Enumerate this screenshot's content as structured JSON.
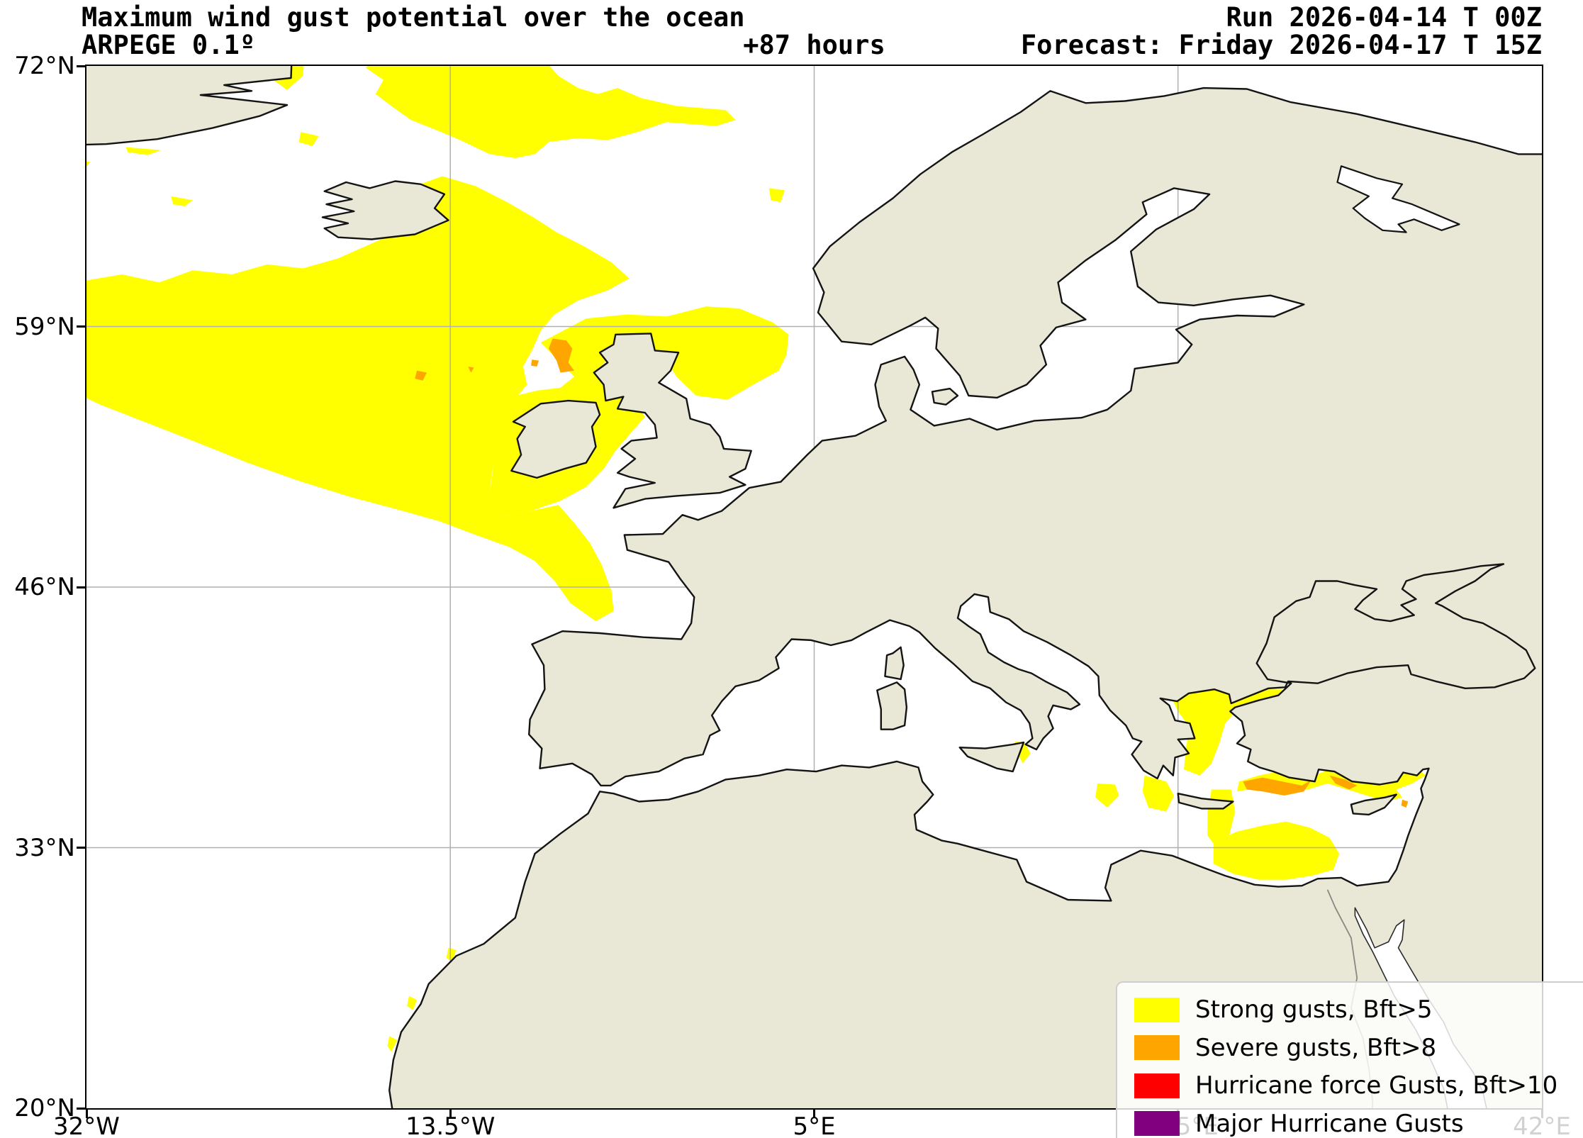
{
  "header": {
    "title": "Maximum wind gust potential over the ocean",
    "model": "ARPEGE 0.1º",
    "lead": "+87 hours",
    "run": "Run 2026-04-14 T 00Z",
    "forecast": "Forecast: Friday 2026-04-17 T 15Z"
  },
  "axes": {
    "y_ticks": [
      "72°N",
      "59°N",
      "46°N",
      "33°N",
      "20°N"
    ],
    "x_ticks": [
      "32°W",
      "13.5°W",
      "5°E",
      "23.5°E",
      "42°E"
    ]
  },
  "legend": {
    "items": [
      {
        "name": "strong-gusts",
        "label": "Strong gusts, Bft>5",
        "color": "#ffff00"
      },
      {
        "name": "severe-gusts",
        "label": "Severe gusts, Bft>8",
        "color": "#ffa500"
      },
      {
        "name": "hurricane-gusts",
        "label": "Hurricane force Gusts, Bft>10",
        "color": "#ff0000"
      },
      {
        "name": "major-hurricane-gusts",
        "label": "Major Hurricane Gusts",
        "color": "#800080"
      }
    ]
  },
  "map": {
    "colors": {
      "ocean": "#ffffff",
      "land": "#e9e8d6",
      "coast": "#141414",
      "grid": "#b0b0b0",
      "strong": "#ffff00",
      "severe": "#ffa500"
    }
  }
}
